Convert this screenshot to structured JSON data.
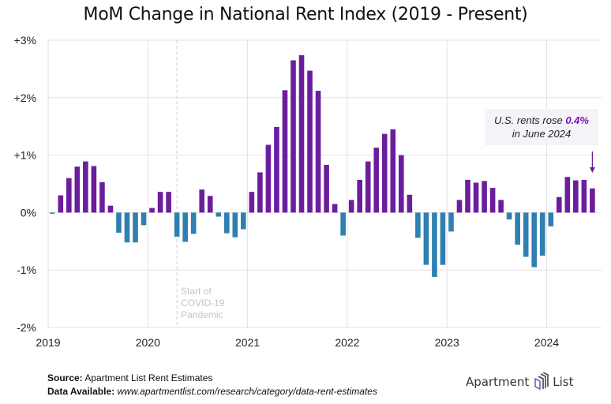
{
  "chart_data": {
    "type": "bar",
    "title": "MoM Change in National Rent Index (2019 - Present)",
    "xlabel": "",
    "ylabel": "",
    "ylim": [
      -2,
      3
    ],
    "yticks": [
      3,
      2,
      1,
      0,
      -1,
      -2
    ],
    "ytick_labels": [
      "+3%",
      "+2%",
      "+1%",
      "0%",
      "-1%",
      "-2%"
    ],
    "xticks": [
      "2019",
      "2020",
      "2021",
      "2022",
      "2023",
      "2024"
    ],
    "grid": true,
    "start": "2019-01",
    "frequency": "monthly",
    "series": [
      {
        "name": "MoM % change",
        "values": [
          -0.02,
          0.3,
          0.6,
          0.8,
          0.89,
          0.81,
          0.53,
          0.12,
          -0.35,
          -0.52,
          -0.52,
          -0.22,
          0.08,
          0.36,
          0.36,
          -0.42,
          -0.51,
          -0.37,
          0.4,
          0.29,
          -0.07,
          -0.36,
          -0.43,
          -0.29,
          0.36,
          0.7,
          1.18,
          1.49,
          2.13,
          2.65,
          2.74,
          2.47,
          2.12,
          0.83,
          0.15,
          -0.4,
          0.22,
          0.57,
          0.89,
          1.13,
          1.37,
          1.45,
          1.0,
          0.31,
          -0.44,
          -0.91,
          -1.12,
          -0.91,
          -0.33,
          0.22,
          0.57,
          0.52,
          0.55,
          0.43,
          0.22,
          -0.12,
          -0.56,
          -0.77,
          -0.95,
          -0.75,
          -0.24,
          0.27,
          0.62,
          0.56,
          0.57,
          0.42
        ]
      }
    ],
    "colors": {
      "positive": "#6c1d9e",
      "negative": "#2f7fb0"
    },
    "annotations": [
      {
        "type": "vline",
        "at": "2020-04",
        "style": "dashed",
        "label": [
          "Start of",
          "COVID-19",
          "Pandemic"
        ]
      },
      {
        "type": "callout",
        "at": "2024-06",
        "text_prefix": "U.S. rents rose ",
        "highlight": "0.4%",
        "text_line2": "in June 2024",
        "arrow": true
      }
    ]
  },
  "footer": {
    "source_label": "Source:",
    "source_value": " Apartment List Rent Estimates",
    "data_label": "Data Available:",
    "data_value": " www.apartmentlist.com/research/category/data-rent-estimates"
  },
  "logo": {
    "left_text": "Apartment",
    "right_text": "List",
    "icon": "apartment-list-logo-icon"
  }
}
